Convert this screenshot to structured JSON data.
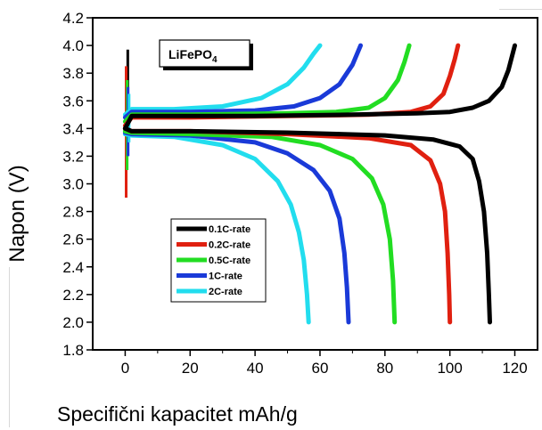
{
  "chart_data": {
    "type": "line",
    "xlabel": "Specifični kapacitet mAh/g",
    "ylabel": "Napon (V)",
    "annotation": {
      "text": "LiFePO",
      "subscript": "4"
    },
    "xlim": [
      -10,
      127
    ],
    "ylim": [
      1.8,
      4.2
    ],
    "xticks": [
      0,
      20,
      40,
      60,
      80,
      100,
      120
    ],
    "yticks": [
      1.8,
      2.0,
      2.2,
      2.4,
      2.6,
      2.8,
      3.0,
      3.2,
      3.4,
      3.6,
      3.8,
      4.0,
      4.2
    ],
    "grid": false,
    "legend_position": "lower-left",
    "series": [
      {
        "name": "0.1C-rate",
        "color": "#000000",
        "charge": [
          [
            0,
            3.4
          ],
          [
            2,
            3.49
          ],
          [
            10,
            3.49
          ],
          [
            40,
            3.49
          ],
          [
            70,
            3.5
          ],
          [
            90,
            3.51
          ],
          [
            100,
            3.52
          ],
          [
            107,
            3.55
          ],
          [
            112,
            3.6
          ],
          [
            116,
            3.7
          ],
          [
            118,
            3.82
          ],
          [
            120,
            4.0
          ]
        ],
        "discharge": [
          [
            0,
            3.4
          ],
          [
            2,
            3.38
          ],
          [
            20,
            3.38
          ],
          [
            50,
            3.37
          ],
          [
            80,
            3.35
          ],
          [
            95,
            3.32
          ],
          [
            103,
            3.27
          ],
          [
            107,
            3.18
          ],
          [
            109,
            3.02
          ],
          [
            110.5,
            2.8
          ],
          [
            111.5,
            2.5
          ],
          [
            112,
            2.2
          ],
          [
            112.3,
            2.0
          ]
        ]
      },
      {
        "name": "0.2C-rate",
        "color": "#e02010",
        "charge": [
          [
            0,
            3.42
          ],
          [
            2,
            3.48
          ],
          [
            20,
            3.48
          ],
          [
            50,
            3.49
          ],
          [
            75,
            3.5
          ],
          [
            88,
            3.52
          ],
          [
            94,
            3.56
          ],
          [
            98,
            3.65
          ],
          [
            100,
            3.78
          ],
          [
            101.5,
            3.9
          ],
          [
            102.5,
            4.0
          ]
        ],
        "discharge": [
          [
            0,
            3.4
          ],
          [
            2,
            3.38
          ],
          [
            20,
            3.38
          ],
          [
            50,
            3.36
          ],
          [
            75,
            3.33
          ],
          [
            88,
            3.28
          ],
          [
            94,
            3.17
          ],
          [
            97,
            3.0
          ],
          [
            98.5,
            2.8
          ],
          [
            99.3,
            2.5
          ],
          [
            99.8,
            2.2
          ],
          [
            100,
            2.0
          ]
        ]
      },
      {
        "name": "0.5C-rate",
        "color": "#22dd22",
        "charge": [
          [
            0,
            3.45
          ],
          [
            2,
            3.5
          ],
          [
            20,
            3.5
          ],
          [
            50,
            3.51
          ],
          [
            65,
            3.52
          ],
          [
            75,
            3.55
          ],
          [
            80,
            3.62
          ],
          [
            84,
            3.75
          ],
          [
            86,
            3.88
          ],
          [
            87.5,
            4.0
          ]
        ],
        "discharge": [
          [
            0,
            3.38
          ],
          [
            2,
            3.37
          ],
          [
            20,
            3.36
          ],
          [
            45,
            3.34
          ],
          [
            60,
            3.28
          ],
          [
            70,
            3.18
          ],
          [
            76,
            3.04
          ],
          [
            79.5,
            2.85
          ],
          [
            81.5,
            2.6
          ],
          [
            82.5,
            2.3
          ],
          [
            83,
            2.0
          ]
        ]
      },
      {
        "name": "1C-rate",
        "color": "#1a3ad8",
        "charge": [
          [
            0,
            3.48
          ],
          [
            2,
            3.52
          ],
          [
            20,
            3.52
          ],
          [
            40,
            3.53
          ],
          [
            52,
            3.56
          ],
          [
            60,
            3.62
          ],
          [
            66,
            3.72
          ],
          [
            70,
            3.86
          ],
          [
            72.5,
            4.0
          ]
        ],
        "discharge": [
          [
            0,
            3.37
          ],
          [
            2,
            3.36
          ],
          [
            20,
            3.35
          ],
          [
            40,
            3.3
          ],
          [
            50,
            3.22
          ],
          [
            58,
            3.1
          ],
          [
            63,
            2.95
          ],
          [
            66,
            2.75
          ],
          [
            67.5,
            2.5
          ],
          [
            68.3,
            2.25
          ],
          [
            68.8,
            2.0
          ]
        ]
      },
      {
        "name": "2C-rate",
        "color": "#22ddee",
        "charge": [
          [
            0,
            3.5
          ],
          [
            2,
            3.54
          ],
          [
            15,
            3.54
          ],
          [
            30,
            3.56
          ],
          [
            42,
            3.62
          ],
          [
            50,
            3.72
          ],
          [
            55,
            3.84
          ],
          [
            58,
            3.94
          ],
          [
            60,
            4.0
          ]
        ],
        "discharge": [
          [
            0,
            3.36
          ],
          [
            2,
            3.35
          ],
          [
            15,
            3.34
          ],
          [
            30,
            3.28
          ],
          [
            40,
            3.18
          ],
          [
            47,
            3.02
          ],
          [
            51,
            2.85
          ],
          [
            53.5,
            2.65
          ],
          [
            55,
            2.45
          ],
          [
            56,
            2.2
          ],
          [
            56.5,
            2.0
          ]
        ]
      }
    ]
  }
}
